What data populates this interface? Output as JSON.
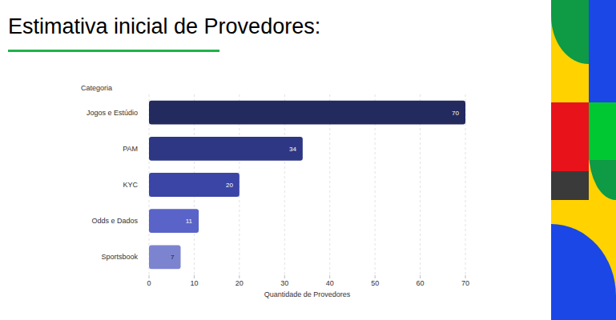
{
  "chart_data": {
    "type": "bar",
    "orientation": "horizontal",
    "title": "Estimativa inicial de Provedores:",
    "y_label": "Categoria",
    "x_label": "Quantidade de Provedores",
    "categories": [
      "Jogos e Estúdio",
      "PAM",
      "KYC",
      "Odds e Dados",
      "Sportsbook"
    ],
    "values": [
      70,
      34,
      20,
      11,
      7
    ],
    "colors": [
      "#232a5e",
      "#2e3784",
      "#3b45a6",
      "#5a63c7",
      "#7c84d0"
    ],
    "xlim": [
      0,
      70
    ],
    "xticks": [
      0,
      10,
      20,
      30,
      40,
      50,
      60,
      70
    ],
    "grid": true,
    "data_labels": true
  }
}
